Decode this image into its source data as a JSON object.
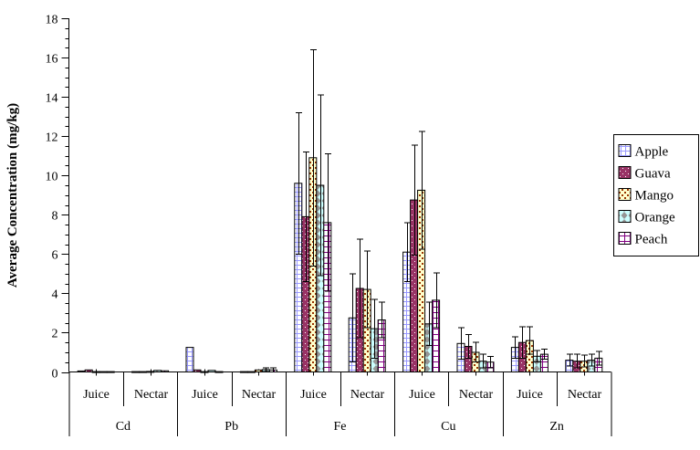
{
  "chart_data": {
    "type": "bar",
    "title": "",
    "ylabel": "Average Concentration (mg/kg)",
    "ylim": [
      0,
      18
    ],
    "y_major_step": 2,
    "y_minor_step": 0.5,
    "grid": false,
    "legend_position": "right",
    "group_labels": [
      "Cd",
      "Pb",
      "Fe",
      "Cu",
      "Zn"
    ],
    "subgroup_labels": [
      "Juice",
      "Nectar"
    ],
    "categories": [
      "Cd Juice",
      "Cd Nectar",
      "Pb Juice",
      "Pb Nectar",
      "Fe Juice",
      "Fe Nectar",
      "Cu Juice",
      "Cu Nectar",
      "Zn Juice",
      "Zn Nectar"
    ],
    "series": [
      {
        "name": "Apple",
        "pattern": "lavender-grid",
        "colors": {
          "bg": "#FFFFFF",
          "fg": "#9999FF"
        },
        "values": [
          0.05,
          0.02,
          1.25,
          0.02,
          9.6,
          2.75,
          6.1,
          1.45,
          1.25,
          0.6
        ],
        "errors": [
          0,
          0,
          0,
          0,
          3.6,
          2.25,
          1.5,
          0.8,
          0.55,
          0.3
        ]
      },
      {
        "name": "Guava",
        "pattern": "plum-white-dots",
        "colors": {
          "bg": "#993366",
          "fg": "#FFFFFF"
        },
        "values": [
          0.1,
          0.02,
          0.1,
          0.02,
          7.9,
          4.25,
          8.75,
          1.3,
          1.5,
          0.55
        ],
        "errors": [
          0,
          0,
          0,
          0,
          3.3,
          2.5,
          2.8,
          0.6,
          0.8,
          0.35
        ]
      },
      {
        "name": "Mango",
        "pattern": "cream-red-dots",
        "colors": {
          "bg": "#FFFFCC",
          "fg": "#993300"
        },
        "values": [
          0.02,
          0.03,
          0.02,
          0.1,
          10.9,
          4.2,
          9.25,
          1.0,
          1.6,
          0.55
        ],
        "errors": [
          0,
          0,
          0,
          0,
          5.5,
          1.95,
          3.0,
          0.5,
          0.7,
          0.3
        ]
      },
      {
        "name": "Orange",
        "pattern": "cyan-gray-diamonds",
        "colors": {
          "bg": "#CCFFFF",
          "fg": "#969696"
        },
        "values": [
          0.02,
          0.08,
          0.08,
          0.12,
          9.5,
          2.2,
          2.45,
          0.55,
          0.8,
          0.6
        ],
        "errors": [
          0,
          0,
          0,
          0.1,
          4.6,
          1.5,
          1.1,
          0.35,
          0.3,
          0.3
        ]
      },
      {
        "name": "Peach",
        "pattern": "purple-grid",
        "colors": {
          "bg": "#FFFFFF",
          "fg": "#800080"
        },
        "values": [
          0.02,
          0.06,
          0.02,
          0.1,
          7.6,
          2.65,
          3.65,
          0.5,
          0.9,
          0.7
        ],
        "errors": [
          0,
          0,
          0,
          0.1,
          3.5,
          0.9,
          1.4,
          0.3,
          0.25,
          0.35
        ]
      }
    ]
  }
}
